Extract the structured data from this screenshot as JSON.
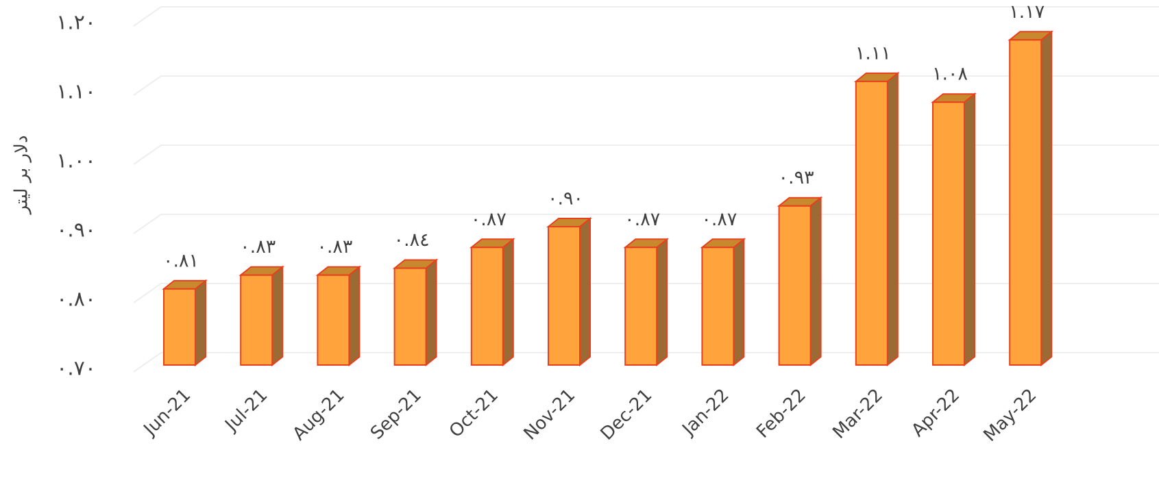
{
  "chart_data": {
    "type": "bar3d",
    "y_axis_label": "دلار بر لیتر",
    "categories": [
      "Jun-21",
      "Jul-21",
      "Aug-21",
      "Sep-21",
      "Oct-21",
      "Nov-21",
      "Dec-21",
      "Jan-22",
      "Feb-22",
      "Mar-22",
      "Apr-22",
      "May-22"
    ],
    "values": [
      0.81,
      0.83,
      0.83,
      0.84,
      0.87,
      0.9,
      0.87,
      0.87,
      0.93,
      1.11,
      1.08,
      1.17
    ],
    "value_labels": [
      "٠.٨١",
      "٠.٨٣",
      "٠.٨٣",
      "٠.٨٤",
      "٠.٨٧",
      "٠.٩٠",
      "٠.٨٧",
      "٠.٨٧",
      "٠.٩٣",
      "١.١١",
      "١.٠٨",
      "١.١٧"
    ],
    "color": "#ffa33d",
    "ylim": [
      0.7,
      1.2
    ],
    "yticks": [
      {
        "value": 0.7,
        "label": "٠.٧٠"
      },
      {
        "value": 0.8,
        "label": "٠.٨٠"
      },
      {
        "value": 0.9,
        "label": "٠.٩٠"
      },
      {
        "value": 1.0,
        "label": "١.٠٠"
      },
      {
        "value": 1.1,
        "label": "١.١٠"
      },
      {
        "value": 1.2,
        "label": "١.٢٠"
      }
    ],
    "grid": true
  }
}
